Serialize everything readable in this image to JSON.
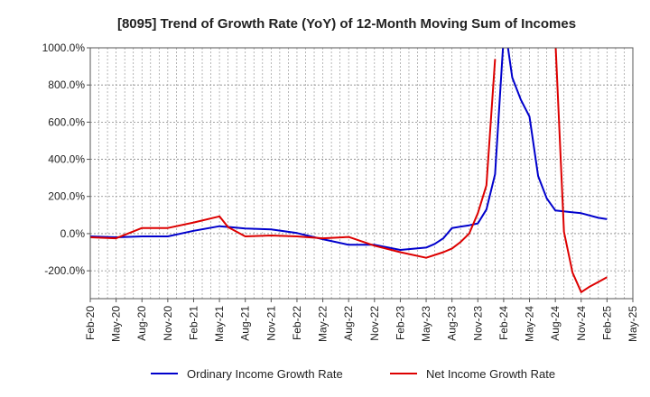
{
  "chart_data": {
    "type": "line",
    "title": "[8095]  Trend of Growth Rate (YoY) of 12-Month Moving Sum of Incomes",
    "xlabel": "",
    "ylabel": "",
    "ylim": [
      -350,
      1000
    ],
    "y_ticks": [
      1000,
      800,
      600,
      400,
      200,
      0,
      -200
    ],
    "y_tick_labels": [
      "1000.0%",
      "800.0%",
      "600.0%",
      "400.0%",
      "200.0%",
      "0.0%",
      "-200.0%"
    ],
    "x_tick_labels": [
      "Feb-20",
      "May-20",
      "Aug-20",
      "Nov-20",
      "Feb-21",
      "May-21",
      "Aug-21",
      "Nov-21",
      "Feb-22",
      "May-22",
      "Aug-22",
      "Nov-22",
      "Feb-23",
      "May-23",
      "Aug-23",
      "Nov-23",
      "Feb-24",
      "May-24",
      "Aug-24",
      "Nov-24",
      "Feb-25",
      "May-25"
    ],
    "grid": true,
    "legend_position": "bottom",
    "series": [
      {
        "name": "Ordinary Income Growth Rate",
        "color": "#0000cc",
        "points": [
          [
            0,
            -15
          ],
          [
            3,
            -20
          ],
          [
            6,
            -15
          ],
          [
            9,
            -15
          ],
          [
            12,
            15
          ],
          [
            15,
            40
          ],
          [
            18,
            28
          ],
          [
            21,
            23
          ],
          [
            24,
            3
          ],
          [
            27,
            -30
          ],
          [
            30,
            -60
          ],
          [
            33,
            -60
          ],
          [
            36,
            -88
          ],
          [
            39,
            -75
          ],
          [
            40,
            -55
          ],
          [
            41,
            -25
          ],
          [
            42,
            30
          ],
          [
            44,
            45
          ],
          [
            45,
            55
          ],
          [
            46,
            130
          ],
          [
            47,
            320
          ],
          [
            48,
            1060
          ],
          [
            48.5,
            1000
          ],
          [
            49,
            840
          ],
          [
            50,
            720
          ],
          [
            51,
            630
          ],
          [
            52,
            310
          ],
          [
            53,
            190
          ],
          [
            54,
            125
          ],
          [
            57,
            110
          ],
          [
            59,
            85
          ],
          [
            60,
            78
          ]
        ]
      },
      {
        "name": "Net Income Growth Rate",
        "color": "#dd0000",
        "points": [
          [
            0,
            -20
          ],
          [
            3,
            -25
          ],
          [
            6,
            30
          ],
          [
            9,
            30
          ],
          [
            12,
            60
          ],
          [
            15,
            93
          ],
          [
            16,
            35
          ],
          [
            18,
            -15
          ],
          [
            21,
            -10
          ],
          [
            24,
            -15
          ],
          [
            27,
            -25
          ],
          [
            30,
            -18
          ],
          [
            33,
            -65
          ],
          [
            36,
            -100
          ],
          [
            39,
            -130
          ],
          [
            41,
            -100
          ],
          [
            42,
            -80
          ],
          [
            43,
            -45
          ],
          [
            44,
            0
          ],
          [
            45,
            110
          ],
          [
            46,
            260
          ],
          [
            47,
            940
          ]
        ]
      },
      {
        "name": "",
        "color": "#dd0000",
        "points": [
          [
            54,
            1050
          ],
          [
            55,
            10
          ],
          [
            56,
            -210
          ],
          [
            57,
            -315
          ],
          [
            58,
            -285
          ],
          [
            59,
            -260
          ],
          [
            60,
            -235
          ]
        ]
      }
    ]
  },
  "legend": {
    "entries": [
      "Ordinary Income Growth Rate",
      "Net Income Growth Rate"
    ]
  }
}
